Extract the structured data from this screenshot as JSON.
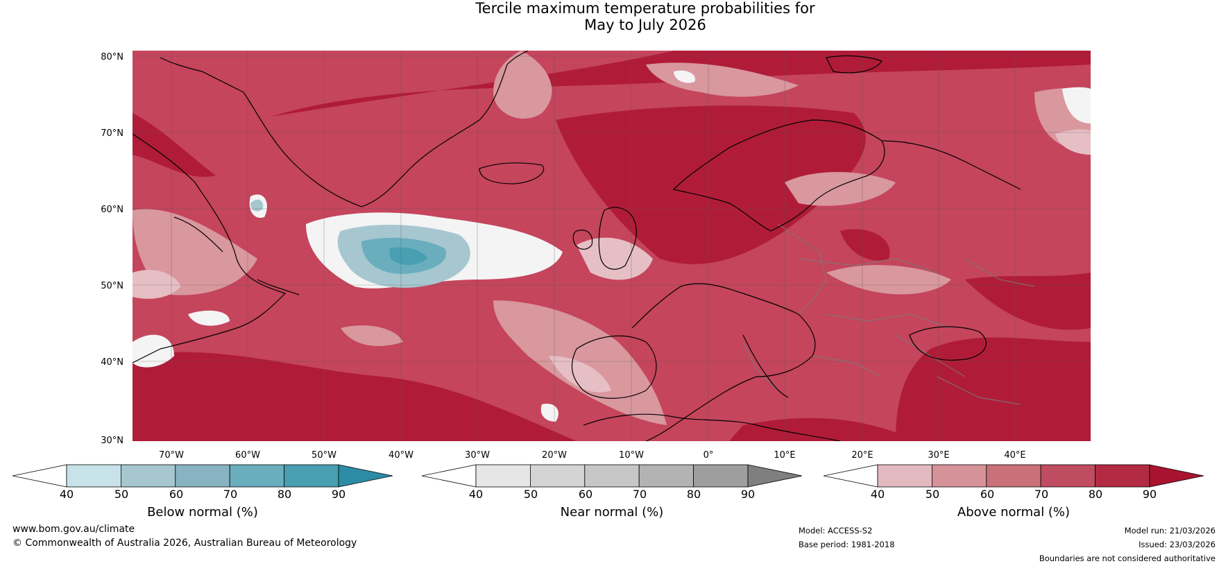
{
  "title": {
    "line1": "Tercile maximum temperature probabilities for",
    "line2": "May to July 2026"
  },
  "map": {
    "lat_labels": [
      "80°N",
      "70°N",
      "60°N",
      "50°N",
      "40°N",
      "30°N"
    ],
    "lon_labels": [
      "70°W",
      "60°W",
      "50°W",
      "40°W",
      "30°W",
      "20°W",
      "10°W",
      "0°",
      "10°E",
      "20°E",
      "30°E",
      "40°E"
    ],
    "background_color": "#c4455c"
  },
  "colorbars": {
    "below": {
      "label": "Below normal (%)",
      "ticks": [
        "40",
        "50",
        "60",
        "70",
        "80",
        "90"
      ],
      "colors": [
        "#ffffff",
        "#c8e2ea",
        "#a6c7cf",
        "#88b3c1",
        "#6aaebe",
        "#479fb1",
        "#2c8ca5"
      ]
    },
    "near": {
      "label": "Near normal (%)",
      "ticks": [
        "40",
        "50",
        "60",
        "70",
        "80",
        "90"
      ],
      "colors": [
        "#ffffff",
        "#e6e6e6",
        "#d4d4d4",
        "#c6c6c6",
        "#b3b3b3",
        "#9e9e9e",
        "#7f7f7f"
      ]
    },
    "above": {
      "label": "Above normal (%)",
      "ticks": [
        "40",
        "50",
        "60",
        "70",
        "80",
        "90"
      ],
      "colors": [
        "#ffffff",
        "#e3b9c0",
        "#d69299",
        "#c97079",
        "#c04c62",
        "#b32a43",
        "#a8142f"
      ]
    }
  },
  "footer": {
    "website": "www.bom.gov.au/climate",
    "copyright": "© Commonwealth of Australia 2026, Australian Bureau of Meteorology",
    "model": "Model: ACCESS-S2",
    "base_period": "Base period: 1981-2018",
    "model_run": "Model run: 21/03/2026",
    "issued": "Issued: 23/03/2026",
    "disclaimer": "Boundaries are not considered authoritative"
  }
}
